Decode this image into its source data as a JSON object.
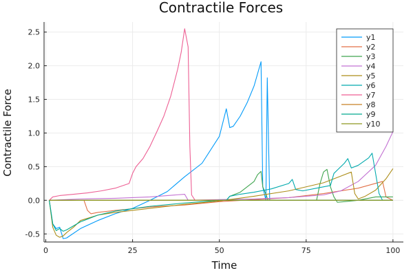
{
  "chart_data": {
    "type": "line",
    "title": "Contractile Forces",
    "xlabel": "Time",
    "ylabel": "Contractile Force",
    "xlim": [
      -0.5,
      103
    ],
    "ylim": [
      -0.62,
      2.65
    ],
    "x_ticks": [
      0,
      25,
      50,
      75,
      100
    ],
    "x_tick_labels": [
      "0",
      "25",
      "50",
      "75",
      "100"
    ],
    "y_ticks": [
      -0.5,
      0.0,
      0.5,
      1.0,
      1.5,
      2.0,
      2.5
    ],
    "y_tick_labels": [
      "-0.5",
      "0.0",
      "0.5",
      "1.0",
      "1.5",
      "2.0",
      "2.5"
    ],
    "grid": true,
    "legend_position": "top-right",
    "series": [
      {
        "name": "y1",
        "color": "#009AF9",
        "points": [
          [
            1,
            0
          ],
          [
            2,
            -0.35
          ],
          [
            3,
            -0.42
          ],
          [
            4,
            -0.4
          ],
          [
            5,
            -0.57
          ],
          [
            6,
            -0.56
          ],
          [
            10,
            -0.42
          ],
          [
            15,
            -0.3
          ],
          [
            20,
            -0.2
          ],
          [
            25,
            -0.12
          ],
          [
            30,
            0.0
          ],
          [
            35,
            0.13
          ],
          [
            40,
            0.35
          ],
          [
            45,
            0.55
          ],
          [
            50,
            0.95
          ],
          [
            52,
            1.36
          ],
          [
            53,
            1.08
          ],
          [
            54,
            1.1
          ],
          [
            56,
            1.25
          ],
          [
            58,
            1.45
          ],
          [
            60,
            1.7
          ],
          [
            62,
            2.06
          ],
          [
            62.5,
            0.2
          ],
          [
            63.4,
            0
          ],
          [
            63.8,
            1.82
          ],
          [
            64.5,
            0
          ],
          [
            100,
            0
          ]
        ]
      },
      {
        "name": "y2",
        "color": "#E26F46",
        "points": [
          [
            1,
            0
          ],
          [
            11,
            0
          ],
          [
            12,
            -0.15
          ],
          [
            13,
            -0.2
          ],
          [
            15,
            -0.18
          ],
          [
            20,
            -0.15
          ],
          [
            30,
            -0.1
          ],
          [
            40,
            -0.07
          ],
          [
            50,
            -0.02
          ],
          [
            60,
            0.01
          ],
          [
            70,
            0.04
          ],
          [
            80,
            0.1
          ],
          [
            90,
            0.18
          ],
          [
            97,
            0.28
          ],
          [
            98,
            0.05
          ],
          [
            100,
            0
          ]
        ]
      },
      {
        "name": "y3",
        "color": "#3EA44E",
        "points": [
          [
            1,
            0
          ],
          [
            52,
            0
          ],
          [
            53,
            0.06
          ],
          [
            56,
            0.12
          ],
          [
            60,
            0.28
          ],
          [
            61,
            0.38
          ],
          [
            62,
            0.43
          ],
          [
            62.5,
            0.2
          ],
          [
            63.5,
            0.08
          ],
          [
            64,
            0
          ],
          [
            78,
            0
          ],
          [
            79,
            0.25
          ],
          [
            80,
            0.42
          ],
          [
            81,
            0.46
          ],
          [
            82,
            0.2
          ],
          [
            83,
            0.05
          ],
          [
            84,
            -0.03
          ],
          [
            86,
            -0.02
          ],
          [
            90,
            0.0
          ],
          [
            95,
            0.05
          ],
          [
            100,
            0.05
          ]
        ]
      },
      {
        "name": "y4",
        "color": "#C271D2",
        "points": [
          [
            1,
            0
          ],
          [
            10,
            0.02
          ],
          [
            20,
            0.03
          ],
          [
            30,
            0.05
          ],
          [
            40,
            0.09
          ],
          [
            41,
            0
          ],
          [
            50,
            0.01
          ],
          [
            60,
            0.02
          ],
          [
            70,
            0.04
          ],
          [
            80,
            0.08
          ],
          [
            85,
            0.14
          ],
          [
            90,
            0.28
          ],
          [
            95,
            0.52
          ],
          [
            98,
            0.8
          ],
          [
            100,
            1.02
          ]
        ]
      },
      {
        "name": "y5",
        "color": "#AC8D18",
        "points": [
          [
            1,
            0
          ],
          [
            2,
            -0.4
          ],
          [
            3,
            -0.52
          ],
          [
            4,
            -0.55
          ],
          [
            5,
            -0.53
          ],
          [
            6,
            -0.48
          ],
          [
            8,
            -0.4
          ],
          [
            10,
            -0.3
          ],
          [
            15,
            -0.22
          ],
          [
            20,
            -0.18
          ],
          [
            30,
            -0.12
          ],
          [
            40,
            -0.06
          ],
          [
            50,
            -0.01
          ],
          [
            60,
            0.06
          ],
          [
            70,
            0.14
          ],
          [
            80,
            0.26
          ],
          [
            85,
            0.36
          ],
          [
            88,
            0.42
          ],
          [
            89,
            0.1
          ],
          [
            90,
            0.02
          ],
          [
            92,
            0.06
          ],
          [
            95,
            0.15
          ],
          [
            98,
            0.32
          ],
          [
            100,
            0.47
          ]
        ]
      },
      {
        "name": "y6",
        "color": "#00A9AD",
        "points": [
          [
            1,
            0
          ],
          [
            52,
            0
          ],
          [
            53,
            0.06
          ],
          [
            56,
            0.09
          ],
          [
            60,
            0.12
          ],
          [
            65,
            0.17
          ],
          [
            70,
            0.25
          ],
          [
            71,
            0.31
          ],
          [
            72,
            0.16
          ],
          [
            74,
            0.14
          ],
          [
            78,
            0.18
          ],
          [
            82,
            0.22
          ],
          [
            83,
            0.4
          ],
          [
            84,
            0.45
          ],
          [
            86,
            0.55
          ],
          [
            87,
            0.62
          ],
          [
            88,
            0.48
          ],
          [
            90,
            0.52
          ],
          [
            93,
            0.63
          ],
          [
            94,
            0.7
          ],
          [
            95,
            0.4
          ],
          [
            96,
            0.1
          ],
          [
            97,
            0
          ],
          [
            100,
            0
          ]
        ]
      },
      {
        "name": "y7",
        "color": "#ED5E93",
        "points": [
          [
            1,
            0
          ],
          [
            2,
            0.05
          ],
          [
            4,
            0.07
          ],
          [
            8,
            0.09
          ],
          [
            12,
            0.11
          ],
          [
            16,
            0.14
          ],
          [
            20,
            0.18
          ],
          [
            24,
            0.25
          ],
          [
            25,
            0.4
          ],
          [
            26,
            0.5
          ],
          [
            28,
            0.62
          ],
          [
            30,
            0.8
          ],
          [
            32,
            1.02
          ],
          [
            34,
            1.25
          ],
          [
            36,
            1.55
          ],
          [
            38,
            1.95
          ],
          [
            39,
            2.2
          ],
          [
            40,
            2.55
          ],
          [
            41,
            2.28
          ],
          [
            41.5,
            0.8
          ],
          [
            42,
            0.08
          ],
          [
            43,
            0
          ],
          [
            100,
            0
          ]
        ]
      },
      {
        "name": "y8",
        "color": "#C68125",
        "points": [
          [
            1,
            0
          ],
          [
            100,
            0
          ]
        ]
      },
      {
        "name": "y9",
        "color": "#00A98D",
        "points": [
          [
            1,
            0
          ],
          [
            2,
            -0.35
          ],
          [
            3,
            -0.45
          ],
          [
            4,
            -0.42
          ],
          [
            5,
            -0.46
          ],
          [
            6,
            -0.44
          ],
          [
            10,
            -0.32
          ],
          [
            15,
            -0.22
          ],
          [
            20,
            -0.16
          ],
          [
            30,
            -0.09
          ],
          [
            40,
            -0.04
          ],
          [
            50,
            0.0
          ],
          [
            60,
            0
          ],
          [
            100,
            0
          ]
        ]
      },
      {
        "name": "y10",
        "color": "#8E971D",
        "points": [
          [
            1,
            0
          ],
          [
            100,
            0
          ]
        ]
      }
    ]
  }
}
